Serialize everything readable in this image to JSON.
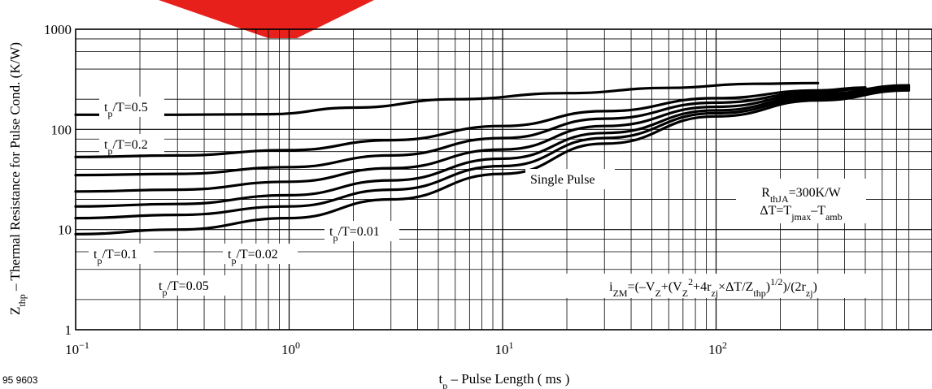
{
  "figure_code": "95 9603",
  "watermark_color": "#e8201c",
  "chart_data": {
    "type": "line",
    "xscale": "log",
    "yscale": "log",
    "xlim": [
      0.1,
      800
    ],
    "ylim": [
      1,
      1000
    ],
    "x_ticks": [
      {
        "value": 0.1,
        "base": "10",
        "exp": "−1"
      },
      {
        "value": 1,
        "base": "10",
        "exp": "0"
      },
      {
        "value": 10,
        "base": "10",
        "exp": "1"
      },
      {
        "value": 100,
        "base": "10",
        "exp": "2"
      }
    ],
    "y_ticks": [
      {
        "value": 1,
        "label": "1"
      },
      {
        "value": 10,
        "label": "10"
      },
      {
        "value": 100,
        "label": "100"
      },
      {
        "value": 1000,
        "label": "1000"
      }
    ],
    "grid": true,
    "xlabel": {
      "main": "t",
      "sub": "p",
      "rest": " – Pulse Length ( ms )"
    },
    "ylabel": {
      "main": "Z",
      "sub": "thp",
      "rest": " – Thermal Resistance for Pulse Cond. (K/W)"
    },
    "series": [
      {
        "name": "tp/T=0.5",
        "x": [
          0.1,
          0.3,
          0.8,
          2,
          6,
          20,
          60,
          150,
          300
        ],
        "y": [
          140,
          140,
          142,
          165,
          200,
          230,
          260,
          285,
          290
        ]
      },
      {
        "name": "tp/T=0.2",
        "x": [
          0.1,
          0.3,
          1,
          3,
          10,
          30,
          100,
          300,
          500
        ],
        "y": [
          53,
          55,
          62,
          78,
          108,
          152,
          205,
          245,
          262
        ]
      },
      {
        "name": "tp/T=0.1",
        "x": [
          0.1,
          0.3,
          1,
          3,
          10,
          30,
          100,
          300,
          500
        ],
        "y": [
          35,
          36,
          42,
          55,
          82,
          128,
          185,
          235,
          255
        ]
      },
      {
        "name": "tp/T=0.05",
        "x": [
          0.1,
          0.3,
          1,
          3,
          10,
          30,
          100,
          300,
          800
        ],
        "y": [
          24,
          25,
          30,
          41,
          63,
          108,
          168,
          225,
          275
        ]
      },
      {
        "name": "tp/T=0.02",
        "x": [
          0.1,
          0.3,
          1,
          3,
          10,
          30,
          100,
          300,
          800
        ],
        "y": [
          17,
          18,
          22,
          31,
          51,
          92,
          155,
          215,
          265
        ]
      },
      {
        "name": "tp/T=0.01",
        "x": [
          0.1,
          0.3,
          1,
          3,
          10,
          30,
          100,
          300,
          800
        ],
        "y": [
          13,
          14,
          17,
          25,
          43,
          82,
          145,
          205,
          255
        ]
      },
      {
        "name": "Single Pulse",
        "x": [
          0.1,
          0.3,
          1,
          3,
          10,
          30,
          100,
          300,
          800
        ],
        "y": [
          9,
          10,
          13,
          20,
          36,
          72,
          135,
          195,
          245
        ]
      }
    ],
    "curve_labels": [
      {
        "text": "t",
        "sub": "p",
        "rest": "/T=0.5"
      },
      {
        "text": "t",
        "sub": "p",
        "rest": "/T=0.2"
      },
      {
        "text": "t",
        "sub": "p",
        "rest": "/T=0.1"
      },
      {
        "text": "t",
        "sub": "p",
        "rest": "/T=0.05"
      },
      {
        "text": "t",
        "sub": "p",
        "rest": "/T=0.02"
      },
      {
        "text": "t",
        "sub": "p",
        "rest": "/T=0.01"
      },
      {
        "text": "Single Pulse"
      }
    ],
    "annotations": {
      "rth": {
        "a": "R",
        "sub": "thJA",
        "b": "=300K/W"
      },
      "delta": {
        "a": "ΔT=T",
        "sub1": "jmax",
        "b": "–T",
        "sub2": "amb"
      },
      "formula": {
        "i": "i",
        "isub": "ZM",
        "p1": "=(–V",
        "s1": "Z",
        "p2": "+(V",
        "s2": "Z",
        "sup1": "2",
        "p3": "+4r",
        "s3": "zj",
        "p4": "×ΔT/Z",
        "s4": "thp",
        "p5": ")",
        "sup2": "1/2",
        "p6": ")/(2r",
        "s5": "zj",
        "p7": ")"
      }
    }
  }
}
